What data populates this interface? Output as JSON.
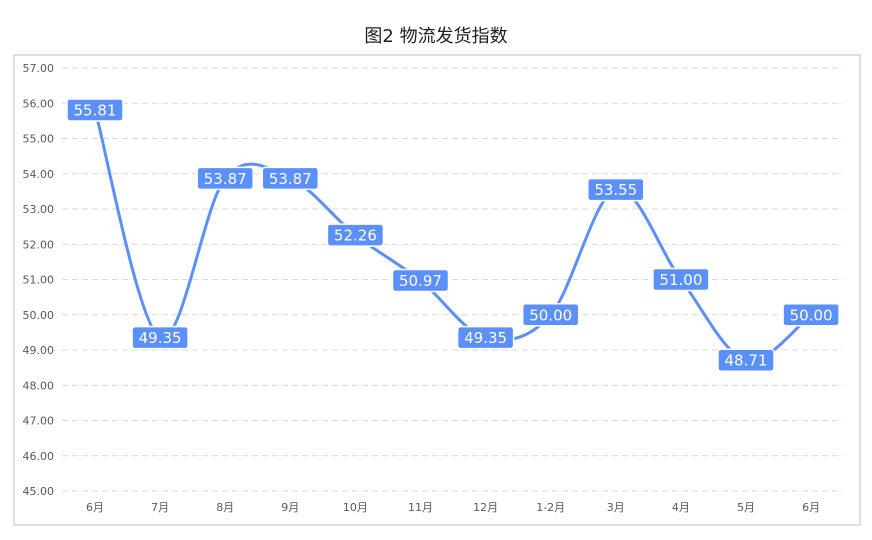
{
  "chart_data": {
    "type": "line",
    "title": "图2 物流发货指数",
    "categories": [
      "6月",
      "7月",
      "8月",
      "9月",
      "10月",
      "11月",
      "12月",
      "1-2月",
      "3月",
      "4月",
      "5月",
      "6月"
    ],
    "series": [
      {
        "values": [
          55.81,
          49.35,
          53.87,
          53.87,
          52.26,
          50.97,
          49.35,
          50.0,
          53.55,
          51.0,
          48.71,
          50.0
        ],
        "labels": [
          "55.81",
          "49.35",
          "53.87",
          "53.87",
          "52.26",
          "50.97",
          "49.35",
          "50.00",
          "53.55",
          "51.00",
          "48.71",
          "50.00"
        ],
        "color": "#5b8ff9"
      }
    ],
    "y_ticks": [
      "45.00",
      "46.00",
      "47.00",
      "48.00",
      "49.00",
      "50.00",
      "51.00",
      "52.00",
      "53.00",
      "54.00",
      "55.00",
      "56.00",
      "57.00"
    ],
    "ylim": [
      45,
      57
    ],
    "smooth": true,
    "grid": "horizontal-dashed",
    "legend": "none"
  }
}
